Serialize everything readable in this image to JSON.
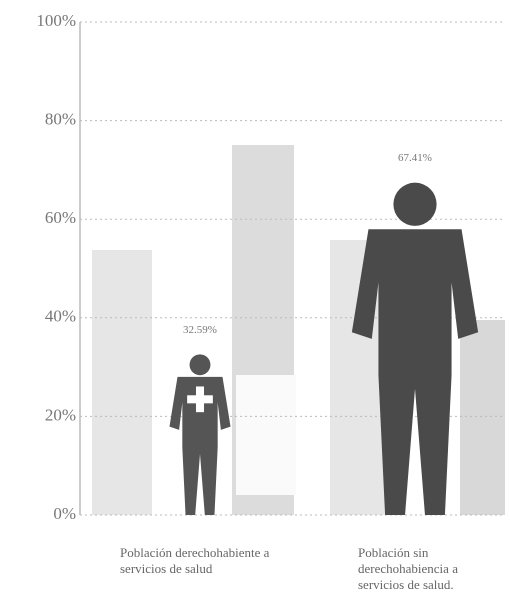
{
  "chart_data": {
    "type": "pictograph",
    "categories": [
      "Población derechohabiente a servicios de salud",
      "Población sin derechohabiencia a servicios de salud."
    ],
    "values": [
      32.59,
      67.41
    ],
    "value_labels": [
      "32.59%",
      "67.41%"
    ],
    "colors": [
      "#555555",
      "#4a4a4a"
    ],
    "ylim": [
      0,
      100
    ],
    "yticks": [
      {
        "value": 0,
        "label": "0%"
      },
      {
        "value": 20,
        "label": "20%"
      },
      {
        "value": 40,
        "label": "40%"
      },
      {
        "value": 60,
        "label": "60%"
      },
      {
        "value": 80,
        "label": "80%"
      },
      {
        "value": 100,
        "label": "100%"
      }
    ],
    "grid": true
  }
}
